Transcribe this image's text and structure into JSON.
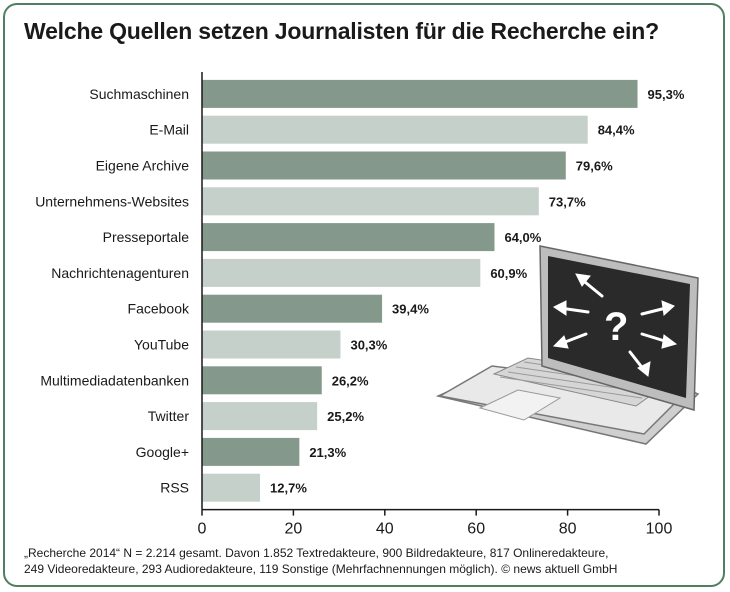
{
  "chart_data": {
    "type": "bar",
    "orientation": "horizontal",
    "title": "Welche Quellen setzen Journalisten für die Recherche ein?",
    "categories": [
      "Suchmaschinen",
      "E-Mail",
      "Eigene Archive",
      "Unternehmens-Websites",
      "Presseportale",
      "Nachrichtenagenturen",
      "Facebook",
      "YouTube",
      "Multimediadatenbanken",
      "Twitter",
      "Google+",
      "RSS"
    ],
    "values": [
      95.3,
      84.4,
      79.6,
      73.7,
      64.0,
      60.9,
      39.4,
      30.3,
      26.2,
      25.2,
      21.3,
      12.7
    ],
    "value_labels": [
      "95,3%",
      "84,4%",
      "79,6%",
      "73,7%",
      "64,0%",
      "60,9%",
      "39,4%",
      "30,3%",
      "26,2%",
      "25,2%",
      "21,3%",
      "12,7%"
    ],
    "xlim": [
      0,
      100
    ],
    "xticks": [
      "0",
      "20",
      "40",
      "60",
      "80",
      "100"
    ],
    "grid": false,
    "colors": {
      "dark_bar": "#84998b",
      "light_bar": "#c5d0ca",
      "frame": "#4f7f5e"
    }
  },
  "footnote": {
    "line1": "„Recherche 2014“ N = 2.214 gesamt. Davon 1.852 Textredakteure, 900 Bildredakteure, 817 Onlineredakteure,",
    "line2": "249 Videoredakteure, 293 Audioredakteure, 119 Sonstige (Mehrfachnennungen möglich). © news aktuell GmbH"
  },
  "illustration": {
    "icon": "laptop-question-icon",
    "screen_glyph": "?"
  }
}
